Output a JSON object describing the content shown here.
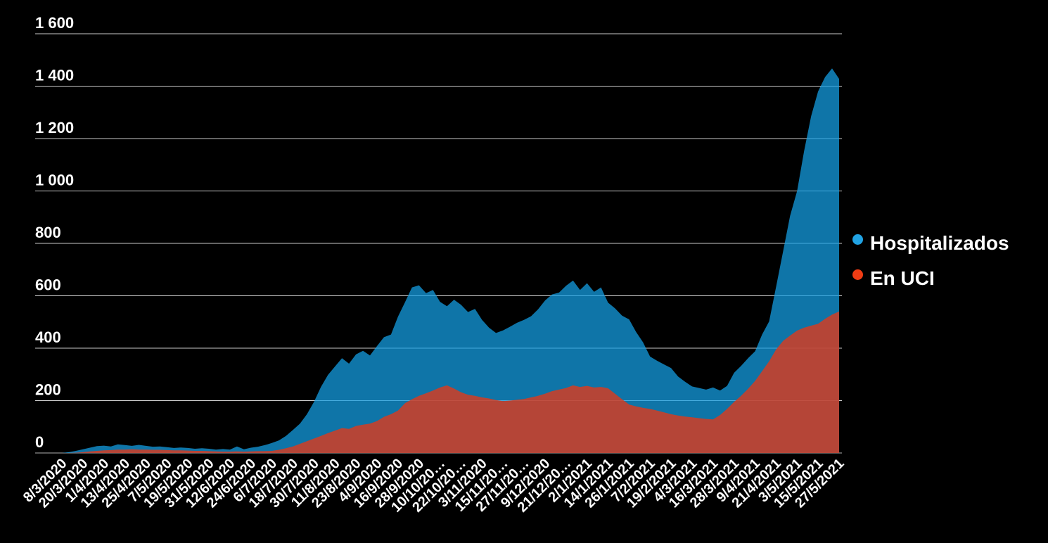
{
  "legend": {
    "items": [
      {
        "label": "Hospitalizados",
        "dot_color": "#21A3E4"
      },
      {
        "label": "En UCI",
        "dot_color": "#F03C14"
      }
    ]
  },
  "chart_data": {
    "type": "area",
    "mode": "overlapping",
    "title": "",
    "xlabel": "",
    "ylabel": "",
    "background_color": "#000000",
    "grid": "horizontal",
    "gridline_color": "#c9c9c9",
    "zero_line_color": "#b0b0b0",
    "label_color": "#ffffff",
    "legend_position": "right",
    "ylim": [
      0,
      1600
    ],
    "y_ticks": [
      0,
      200,
      400,
      600,
      800,
      1000,
      1200,
      1400,
      1600
    ],
    "y_tick_labels": [
      "0",
      "200",
      "400",
      "600",
      "800",
      "1 000",
      "1 200",
      "1 400",
      "1 600"
    ],
    "x_start_date": "8/3/2020",
    "x_end_date": "27/5/2021",
    "x_step_days_per_point": 4,
    "x_label_stride": 3,
    "x_tick_labels": [
      "8/3/2020",
      "20/3/2020",
      "1/4/2020",
      "13/4/2020",
      "25/4/2020",
      "7/5/2020",
      "19/5/2020",
      "31/5/2020",
      "12/6/2020",
      "24/6/2020",
      "6/7/2020",
      "18/7/2020",
      "30/7/2020",
      "11/8/2020",
      "23/8/2020",
      "4/9/2020",
      "16/9/2020",
      "28/9/2020",
      "10/10/20…",
      "22/10/20…",
      "3/11/2020",
      "15/11/20…",
      "27/11/20…",
      "9/12/2020",
      "21/12/20…",
      "2/1/2021",
      "14/1/2021",
      "26/1/2021",
      "7/2/2021",
      "19/2/2021",
      "4/3/2021",
      "16/3/2021",
      "28/3/2021",
      "9/4/2021",
      "21/4/2021",
      "3/5/2021",
      "15/5/2021",
      "27/5/2021"
    ],
    "series": [
      {
        "name": "Hospitalizados",
        "color": "#21A3E4",
        "fill": "#14A0E6",
        "fill_opacity": 0.73,
        "values": [
          0,
          3,
          8,
          14,
          20,
          26,
          28,
          25,
          33,
          30,
          27,
          31,
          27,
          24,
          25,
          22,
          19,
          21,
          19,
          16,
          18,
          16,
          13,
          15,
          13,
          25,
          14,
          20,
          24,
          30,
          38,
          48,
          65,
          88,
          112,
          148,
          195,
          252,
          298,
          330,
          362,
          341,
          376,
          390,
          372,
          408,
          442,
          452,
          520,
          575,
          632,
          640,
          610,
          622,
          577,
          560,
          585,
          566,
          538,
          550,
          508,
          478,
          458,
          468,
          482,
          497,
          508,
          522,
          548,
          582,
          605,
          612,
          638,
          658,
          622,
          648,
          615,
          632,
          574,
          552,
          524,
          510,
          462,
          422,
          368,
          352,
          338,
          324,
          292,
          272,
          254,
          248,
          242,
          250,
          238,
          256,
          306,
          332,
          362,
          388,
          452,
          502,
          634,
          770,
          905,
          1000,
          1152,
          1285,
          1380,
          1435,
          1468,
          1428
        ]
      },
      {
        "name": "En UCI",
        "color": "#F03C14",
        "fill": "#DE3A1A",
        "fill_opacity": 0.8,
        "values": [
          0,
          0,
          1,
          3,
          6,
          8,
          10,
          11,
          13,
          13,
          14,
          13,
          13,
          12,
          12,
          11,
          10,
          10,
          9,
          8,
          8,
          7,
          6,
          5,
          5,
          6,
          5,
          6,
          7,
          7,
          8,
          12,
          18,
          25,
          35,
          45,
          55,
          65,
          76,
          85,
          95,
          92,
          103,
          108,
          112,
          122,
          138,
          148,
          162,
          190,
          205,
          218,
          228,
          238,
          250,
          258,
          246,
          232,
          222,
          218,
          212,
          208,
          202,
          198,
          200,
          203,
          206,
          212,
          218,
          226,
          236,
          242,
          248,
          258,
          252,
          256,
          250,
          252,
          247,
          226,
          205,
          185,
          178,
          172,
          168,
          162,
          155,
          148,
          143,
          139,
          136,
          133,
          130,
          128,
          145,
          168,
          195,
          218,
          245,
          275,
          312,
          350,
          395,
          428,
          448,
          467,
          478,
          486,
          493,
          512,
          528,
          540
        ]
      }
    ]
  }
}
